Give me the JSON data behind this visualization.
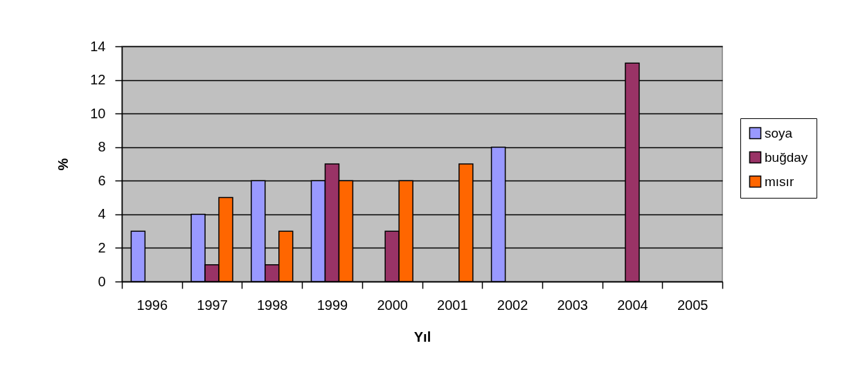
{
  "chart_data": {
    "type": "bar",
    "xlabel": "Yıl",
    "ylabel": "%",
    "categories": [
      "1996",
      "1997",
      "1998",
      "1999",
      "2000",
      "2001",
      "2002",
      "2003",
      "2004",
      "2005"
    ],
    "series": [
      {
        "name": "soya",
        "color": "#9999ff",
        "values": [
          3,
          4,
          6,
          6,
          null,
          null,
          8,
          null,
          null,
          null
        ]
      },
      {
        "name": "buğday",
        "color": "#993366",
        "values": [
          null,
          1,
          1,
          7,
          3,
          null,
          null,
          null,
          13,
          null
        ]
      },
      {
        "name": "mısır",
        "color": "#ff6600",
        "values": [
          null,
          5,
          3,
          6,
          6,
          7,
          null,
          null,
          null,
          null
        ]
      }
    ],
    "ylim": [
      0,
      14
    ],
    "yticks": [
      0,
      2,
      4,
      6,
      8,
      10,
      12,
      14
    ],
    "grid": "y",
    "legend": "right"
  }
}
